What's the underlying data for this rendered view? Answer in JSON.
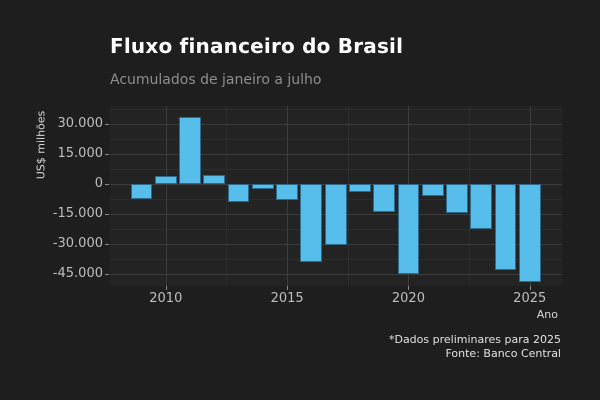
{
  "title": "Fluxo financeiro do Brasil",
  "subtitle": "Acumulados de janeiro a julho",
  "caption": {
    "note": "*Dados preliminares para 2025",
    "source": "Fonte: Banco Central"
  },
  "chart_data": {
    "type": "bar",
    "title": "Fluxo financeiro do Brasil",
    "subtitle": "Acumulados de janeiro a julho",
    "xlabel": "Ano",
    "ylabel": "US$ milhões",
    "categories": [
      2009,
      2010,
      2011,
      2012,
      2013,
      2014,
      2015,
      2016,
      2017,
      2018,
      2019,
      2020,
      2021,
      2022,
      2023,
      2024,
      2025
    ],
    "values": [
      -7500,
      3800,
      33500,
      4500,
      -8800,
      -2700,
      -8200,
      -39200,
      -30300,
      -3900,
      -14200,
      -45000,
      -5900,
      -14700,
      -22700,
      -43000,
      -49200
    ],
    "unit": "US$ milhões",
    "xlim": [
      2007.7,
      2026.33
    ],
    "ylim": [
      -51000,
      39000
    ],
    "y_ticks": [
      {
        "value": 30000,
        "label": "30.000"
      },
      {
        "value": 15000,
        "label": "15.000"
      },
      {
        "value": 0,
        "label": "0"
      },
      {
        "value": -15000,
        "label": "-15.000"
      },
      {
        "value": -30000,
        "label": "-30.000"
      },
      {
        "value": -45000,
        "label": "-45.000"
      }
    ],
    "y_minor": [
      37500,
      22500,
      7500,
      -7500,
      -22500,
      -37500
    ],
    "x_ticks": [
      {
        "value": 2010,
        "label": "2010"
      },
      {
        "value": 2015,
        "label": "2015"
      },
      {
        "value": 2020,
        "label": "2020"
      },
      {
        "value": 2025,
        "label": "2025"
      }
    ],
    "x_minor": [
      2012.5,
      2017.5,
      2022.5
    ],
    "bar_width_years": 0.9,
    "grid": "on",
    "legend": "none",
    "note": "*Dados preliminares para 2025",
    "source": "Fonte: Banco Central"
  },
  "colors": {
    "background": "#1E1E1E",
    "panel": "#232323",
    "grid_major": "#3C3C3C",
    "grid_minor": "#2D2D2D",
    "bar_fill": "#57BEEC",
    "bar_edge": "#2E6A8C",
    "title": "#FFFFFF",
    "subtitle": "#8E8E8E",
    "tick_text": "#BEBEBE",
    "tick_mark": "#8A8A8A",
    "axis_title_text": "#D8D8D8",
    "caption_text": "#E2E2E2"
  }
}
